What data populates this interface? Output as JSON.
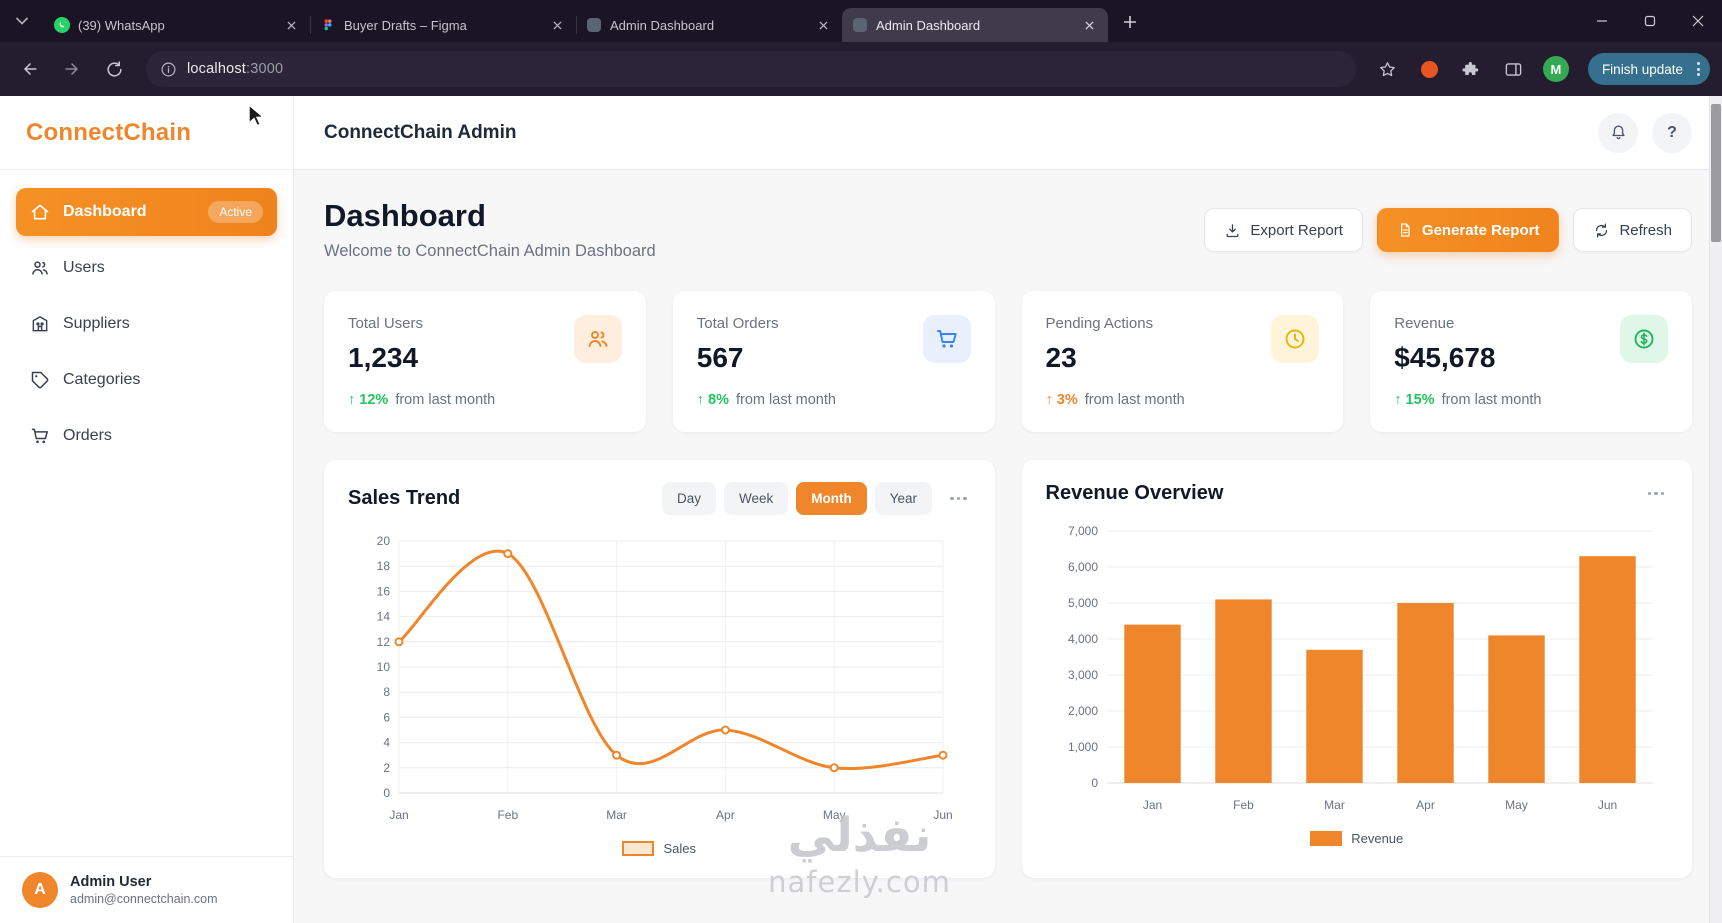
{
  "colors": {
    "accent_orange": "#f0862b",
    "delta_green": "#22c55e",
    "delta_amber": "#f0862b",
    "stat_blue": "#3b82f6",
    "stat_yellow": "#eab308",
    "stat_green": "#22b35e",
    "whatsapp_green": "#25d366",
    "finish_update_blue": "#35708f"
  },
  "browser": {
    "tabs": [
      {
        "label": "(39) WhatsApp"
      },
      {
        "label": "Buyer Drafts – Figma"
      },
      {
        "label": "Admin Dashboard"
      },
      {
        "label": "Admin Dashboard"
      }
    ],
    "url_host": "localhost",
    "url_port": ":3000",
    "profile_initial": "M",
    "update_button": "Finish update"
  },
  "sidebar": {
    "logo": "ConnectChain",
    "items": [
      {
        "label": "Dashboard",
        "badge": "Active"
      },
      {
        "label": "Users"
      },
      {
        "label": "Suppliers"
      },
      {
        "label": "Categories"
      },
      {
        "label": "Orders"
      }
    ],
    "user": {
      "initial": "A",
      "name": "Admin User",
      "email": "admin@connectchain.com"
    }
  },
  "header": {
    "title": "ConnectChain Admin",
    "help_glyph": "?"
  },
  "main": {
    "title": "Dashboard",
    "subtitle": "Welcome to ConnectChain Admin Dashboard",
    "buttons": {
      "export": "Export Report",
      "generate": "Generate Report",
      "refresh": "Refresh"
    },
    "stats": [
      {
        "label": "Total Users",
        "value": "1,234",
        "delta": "↑ 12%",
        "note": "from last month"
      },
      {
        "label": "Total Orders",
        "value": "567",
        "delta": "↑ 8%",
        "note": "from last month"
      },
      {
        "label": "Pending Actions",
        "value": "23",
        "delta": "↑ 3%",
        "note": "from last month"
      },
      {
        "label": "Revenue",
        "value": "$45,678",
        "delta": "↑ 15%",
        "note": "from last month"
      }
    ]
  },
  "chart_data": [
    {
      "type": "line",
      "title": "Sales Trend",
      "x": [
        "Jan",
        "Feb",
        "Mar",
        "Apr",
        "May",
        "Jun"
      ],
      "series": [
        {
          "name": "Sales",
          "values": [
            12,
            19,
            3,
            5,
            2,
            3
          ]
        }
      ],
      "ylim": [
        0,
        20
      ],
      "yticks": [
        0,
        2,
        4,
        6,
        8,
        10,
        12,
        14,
        16,
        18,
        20
      ],
      "filters": [
        "Day",
        "Week",
        "Month",
        "Year"
      ],
      "active_filter": "Month",
      "legend_position": "bottom",
      "grid": true,
      "color": "#f0862b"
    },
    {
      "type": "bar",
      "title": "Revenue Overview",
      "x": [
        "Jan",
        "Feb",
        "Mar",
        "Apr",
        "May",
        "Jun"
      ],
      "series": [
        {
          "name": "Revenue",
          "values": [
            4400,
            5100,
            3700,
            5000,
            4100,
            6300
          ]
        }
      ],
      "ylim": [
        0,
        7000
      ],
      "ytick_step": 1000,
      "legend_position": "bottom",
      "grid": true,
      "color": "#f0862b"
    }
  ],
  "watermark": {
    "title": "نفذلي",
    "domain": "nafezly.com"
  }
}
